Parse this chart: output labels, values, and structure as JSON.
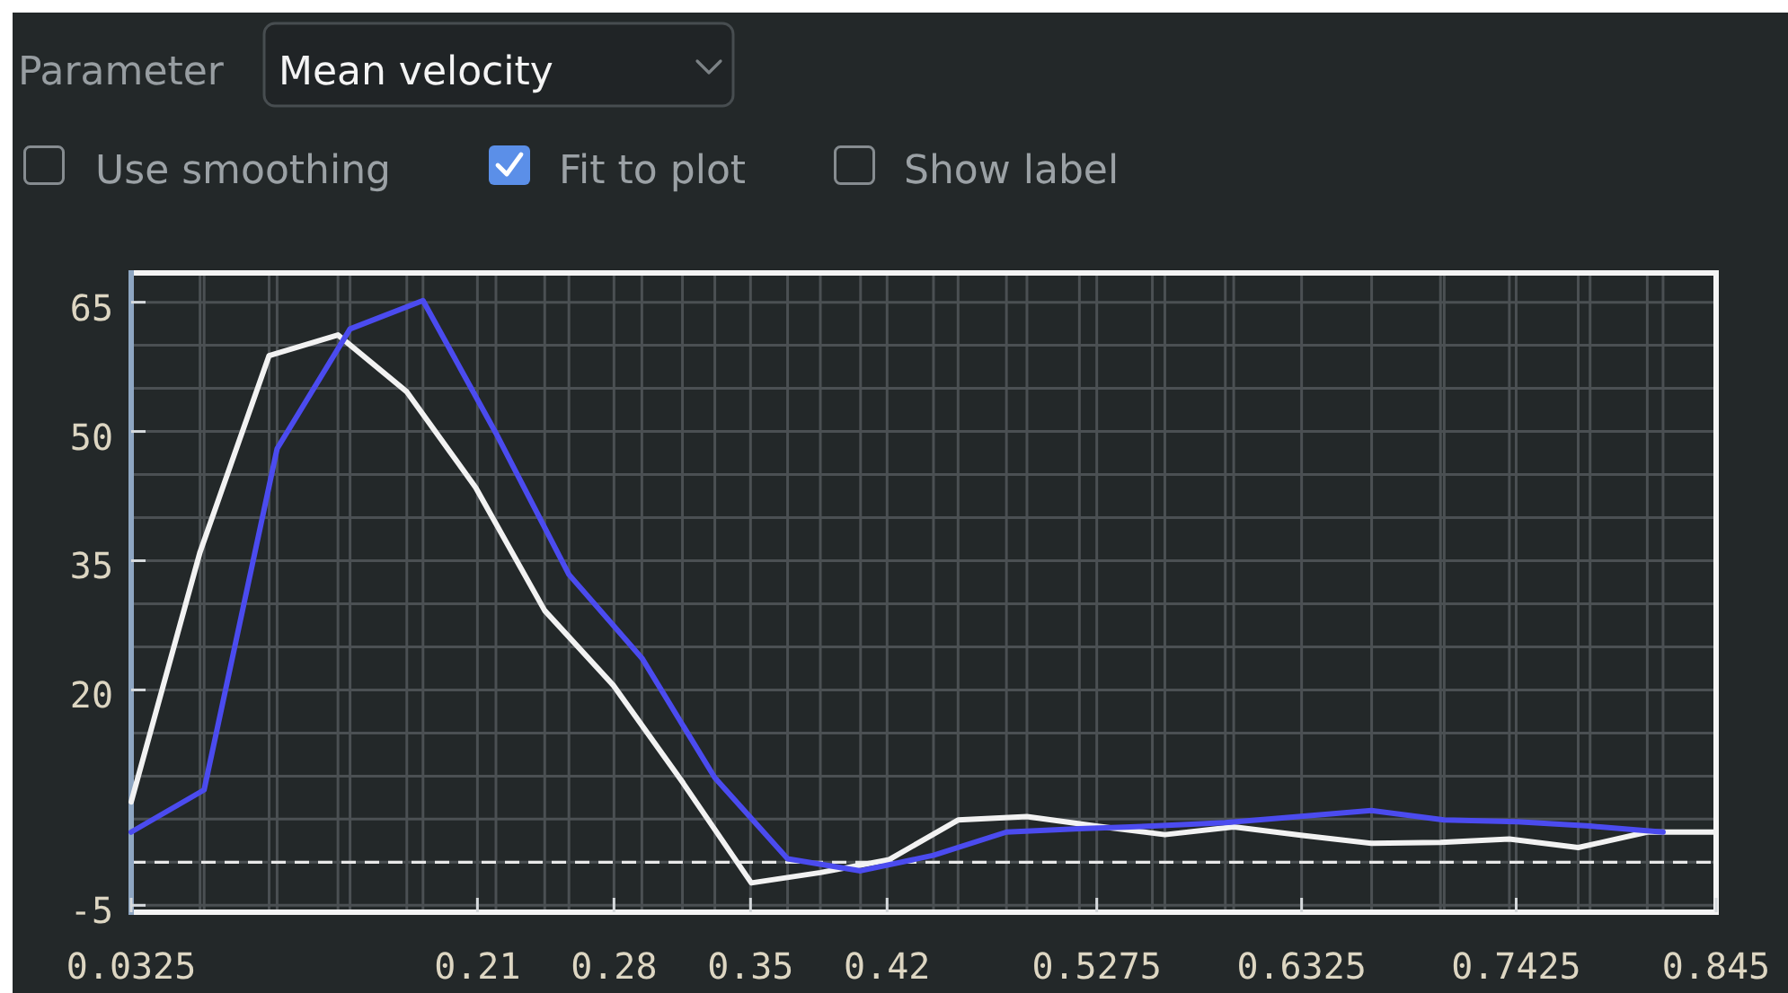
{
  "chart_data": {
    "type": "line",
    "annotations": [
      "Parameter",
      "Mean velocity",
      "Use smoothing",
      "Fit to plot",
      "Show label"
    ],
    "xlim": [
      0.0325,
      0.845
    ],
    "xticks": [
      0.0325,
      {
        "value": 0.0678,
        "label": null
      },
      {
        "value": 0.0699,
        "label": null
      },
      {
        "value": 0.1032,
        "label": null
      },
      {
        "value": 0.1073,
        "label": null
      },
      {
        "value": 0.1385,
        "label": null
      },
      {
        "value": 0.1447,
        "label": null
      },
      {
        "value": 0.1738,
        "label": null
      },
      {
        "value": 0.1821,
        "label": null
      },
      0.21,
      {
        "value": 0.2195,
        "label": null
      },
      {
        "value": 0.2445,
        "label": null
      },
      {
        "value": 0.2569,
        "label": null
      },
      0.28,
      {
        "value": 0.2943,
        "label": null
      },
      {
        "value": 0.3151,
        "label": null
      },
      {
        "value": 0.3317,
        "label": null
      },
      0.35,
      {
        "value": 0.369,
        "label": null
      },
      {
        "value": 0.3858,
        "label": null
      },
      {
        "value": 0.4064,
        "label": null
      },
      0.42,
      {
        "value": 0.4438,
        "label": null
      },
      {
        "value": 0.4564,
        "label": null
      },
      {
        "value": 0.4812,
        "label": null
      },
      {
        "value": 0.4917,
        "label": null
      },
      {
        "value": 0.5186,
        "label": null
      },
      0.5275,
      {
        "value": 0.556,
        "label": null
      },
      {
        "value": 0.5624,
        "label": null
      },
      {
        "value": 0.5934,
        "label": null
      },
      {
        "value": 0.5977,
        "label": null
      },
      0.6325,
      {
        "value": 0.6684,
        "label": null
      },
      {
        "value": 0.7037,
        "label": null
      },
      {
        "value": 0.7056,
        "label": null
      },
      {
        "value": 0.739,
        "label": null
      },
      0.7425,
      {
        "value": 0.7743,
        "label": null
      },
      {
        "value": 0.7804,
        "label": null
      },
      {
        "value": 0.8097,
        "label": null
      },
      {
        "value": 0.8178,
        "label": null
      },
      0.845
    ],
    "ylim": [
      -5.8,
      68.4
    ],
    "yticks": [
      -5,
      {
        "value": 0,
        "label": null
      },
      {
        "value": 5,
        "label": null
      },
      {
        "value": 10,
        "label": null
      },
      {
        "value": 15,
        "label": null
      },
      20,
      {
        "value": 25,
        "label": null
      },
      {
        "value": 30,
        "label": null
      },
      35,
      {
        "value": 40,
        "label": null
      },
      {
        "value": 45,
        "label": null
      },
      50,
      {
        "value": 55,
        "label": null
      },
      {
        "value": 60,
        "label": null
      },
      65
    ],
    "grid": true,
    "ref_lines": [
      {
        "axis": "y",
        "value": 0,
        "color": "#e8e8e8",
        "line_style": "dashed"
      }
    ],
    "series": [
      {
        "color": "#f2f2f2",
        "x": [
          0.0325,
          0.0678,
          0.1032,
          0.1385,
          0.1738,
          0.2091,
          0.2445,
          0.2798,
          0.3151,
          0.3504,
          0.3858,
          0.4211,
          0.4564,
          0.4917,
          0.5271,
          0.5624,
          0.5977,
          0.633,
          0.6684,
          0.7037,
          0.739,
          0.7743,
          0.8097,
          0.845
        ],
        "values": [
          7,
          36,
          58.8,
          61.2,
          54.6,
          43.5,
          29.2,
          20.5,
          9.3,
          -2.4,
          -1.2,
          0.3,
          4.9,
          5.3,
          4.2,
          3.2,
          4.1,
          3.1,
          2.2,
          2.3,
          2.7,
          1.7,
          3.5,
          3.5
        ]
      },
      {
        "color": "#4b4bef",
        "x": [
          0.0325,
          0.0699,
          0.1073,
          0.1447,
          0.1821,
          0.2195,
          0.2569,
          0.2943,
          0.3317,
          0.369,
          0.4064,
          0.4438,
          0.4812,
          0.5186,
          0.556,
          0.5934,
          0.6308,
          0.6682,
          0.7056,
          0.743,
          0.7804,
          0.8178
        ],
        "values": [
          3.5,
          8.4,
          48,
          61.9,
          65.2,
          49.8,
          33.4,
          23.7,
          9.8,
          0.4,
          -1,
          0.8,
          3.5,
          3.9,
          4.2,
          4.6,
          5.3,
          6,
          4.9,
          4.7,
          4.2,
          3.5
        ]
      }
    ]
  }
}
